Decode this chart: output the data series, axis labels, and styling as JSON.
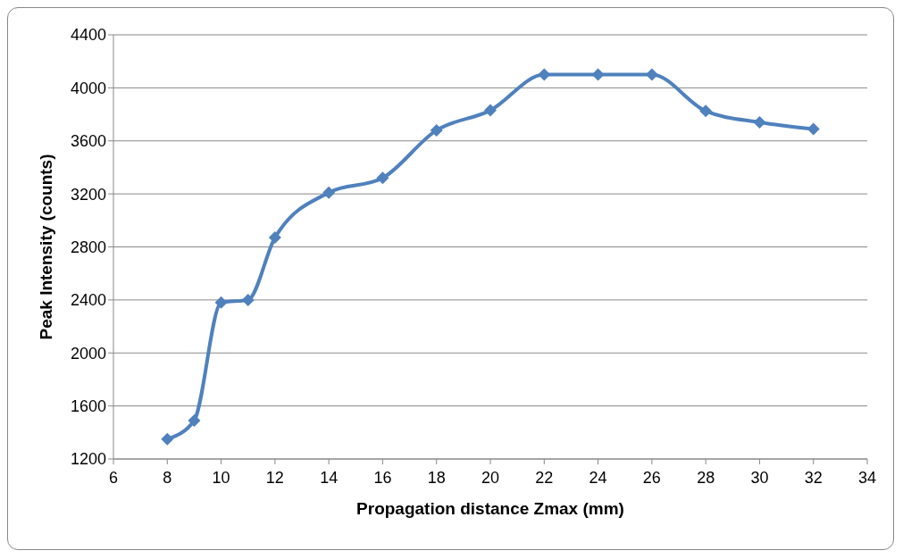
{
  "chart_data": {
    "type": "line",
    "xlabel": "Propagation distance Zmax (mm)",
    "ylabel": "Peak Intensity (counts)",
    "x": [
      8,
      9,
      10,
      11,
      12,
      14,
      16,
      18,
      20,
      22,
      24,
      26,
      28,
      30,
      32
    ],
    "series": [
      {
        "color": "#4f81bd",
        "values": [
          1350,
          1490,
          2380,
          2400,
          2870,
          3210,
          3320,
          3680,
          3830,
          4100,
          4100,
          4100,
          3825,
          3740,
          3690
        ]
      }
    ],
    "xlim": [
      6,
      34
    ],
    "xticks": [
      6,
      8,
      10,
      12,
      14,
      16,
      18,
      20,
      22,
      24,
      26,
      28,
      30,
      32,
      34
    ],
    "ylim": [
      1200,
      4400
    ],
    "yticks": [
      1200,
      1600,
      2000,
      2400,
      2800,
      3200,
      3600,
      4000,
      4400
    ],
    "grid": "y",
    "marker": "diamond",
    "line_style": "solid",
    "legend": false
  }
}
